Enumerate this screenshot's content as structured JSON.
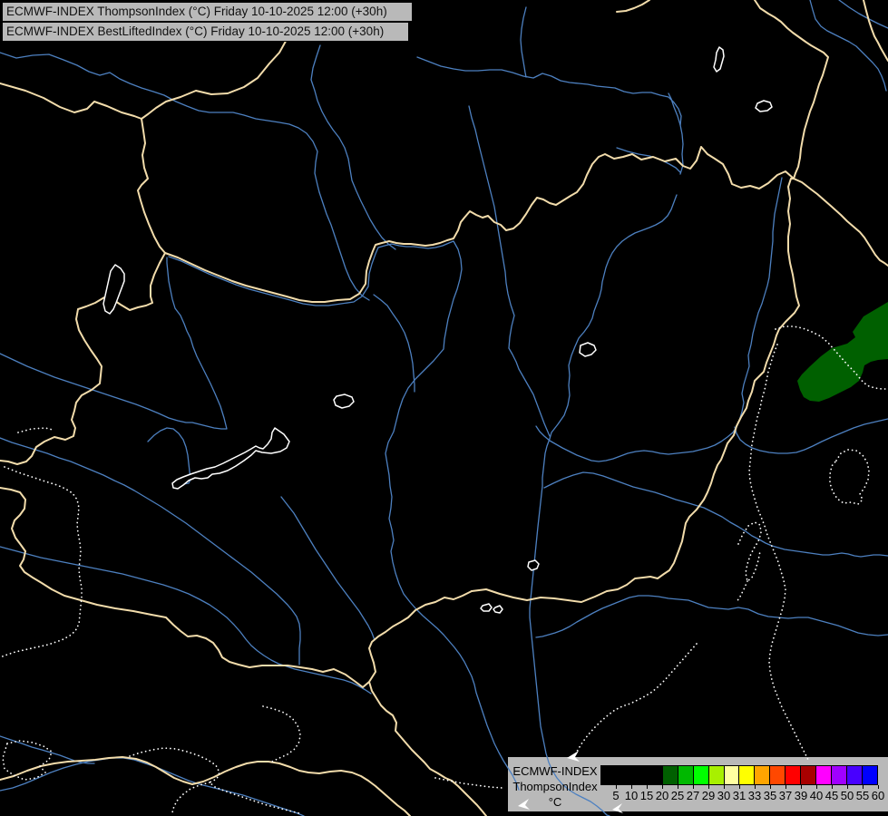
{
  "header": {
    "line1": "ECMWF-INDEX ThompsonIndex (°C) Friday 10-10-2025 12:00 (+30h)",
    "line2": "ECMWF-INDEX BestLiftedIndex (°C) Friday 10-10-2025 12:00 (+30h)"
  },
  "legend": {
    "title_line1": "ECMWF-INDEX",
    "title_line2": "ThompsonIndex",
    "unit": "°C",
    "ticks": [
      "5",
      "10",
      "15",
      "20",
      "25",
      "27",
      "29",
      "30",
      "31",
      "33",
      "35",
      "37",
      "39",
      "40",
      "45",
      "50",
      "55",
      "60"
    ],
    "cell_colors": [
      "#000000",
      "#000000",
      "#000000",
      "#000000",
      "#006000",
      "#00b800",
      "#00ff00",
      "#a8f000",
      "#ffffa0",
      "#ffff00",
      "#ffa500",
      "#ff4800",
      "#ff0000",
      "#a80000",
      "#ff00ff",
      "#a000ff",
      "#4800ff",
      "#0000ff"
    ]
  },
  "colors": {
    "background": "#000000",
    "panel_gray": "#b9b9b9",
    "border_tan": "#f2dcab",
    "river_blue": "#4d80c0",
    "dotted_white": "#ffffff",
    "area_green": "#006000",
    "text": "#111111"
  },
  "map": {
    "layers": [
      {
        "name": "data-area",
        "fill": "#006000",
        "paths": [
          "M979,333 L952,349 940,366 943,372 934,379 917,384 905,393 893,404 884,413 879,420 882,430 886,438 893,442 903,443 914,439 926,433 938,427 947,420 951,411 953,403 960,399 968,397 979,396 Z"
        ]
      },
      {
        "name": "legend-panel",
        "fill": "#b9b9b9",
        "paths": [
          "M560,835 L979,835 979,895 560,895 Z"
        ]
      },
      {
        "name": "river-path",
        "stroke": "#4d80c0",
        "width": 1.3,
        "paths": [
          "M0,58 L18,64 36,61 54,60 70,66 85,72 98,79 110,83 121,80 132,87 143,92 156,97 169,101 181,105 194,112 206,117 219,122 231,124 244,124 257,124 269,127 282,131 295,133 308,135 319,137 329,141 338,147 345,156 350,167 348,179 347,191 350,204 352,212",
          "M352,212 L356,224 360,236 365,248 369,260 373,272 377,284 381,296 386,308 392,318 399,326 407,331",
          "M353,50 L349,62 345,75 343,88 347,100 350,111 355,123 361,134 367,143 374,152 380,163 384,175 386,187 388,199 393,211 398,222 403,232 408,242 414,252 421,262 428,269 436,275",
          "M186,283 L200,288 215,295 230,302 245,308 260,314 275,319 290,323 305,327 320,331 334,335 348,337 362,337 376,335 390,333 399,327 406,316 407,302 410,291 414,280 417,273 424,271 432,269 440,271 448,272 456,272 464,273 472,274 480,273 488,271 495,268 500,266 505,275 508,286 509,297 507,308 504,319 500,330 497,341 494,352 492,363 490,374 489,385 478,398 468,408 458,418 450,428 444,440 440,452 437,464 434,476 428,488 425,500 427,512 429,524 430,536 432,548 431,560 429,572 432,584 434,596 431,608 433,620 436,632 440,644 445,655 452,664 459,672 466,679 474,686 482,693 489,700 495,707 501,714 507,722 512,730 516,738 520,746 523,755 525,764 528,773 531,782 534,791 537,800 541,810 545,820 550,830 555,839 560,847 565,855 569,863 572,871",
          "M412,325 L420,331 427,337 433,346 440,356 446,367 450,378 453,390 455,401 456,413 457,424 457,432",
          "M517,117 L520,130 524,143 527,156 530,168 533,180 536,192 539,204 542,216 545,228 547,240 549,252 551,264 553,276 555,288 557,300 558,312 560,324 563,336 567,348 564,360 562,372 561,384",
          "M561,384 L565,391 569,399 572,407 576,414 580,421 584,428 588,435 591,443 594,451 597,459 600,467 603,474 606,481",
          "M580,8 L577,20 575,32 574,44 575,56 577,68 579,80 580,85",
          "M746,215 L743,223 740,231 736,238 730,244 723,248 716,251 708,254 700,257 693,261 686,266 680,272 675,279 671,287 668,295 666,303 664,311 663,319 661,327 658,335 655,343 653,351 649,359 644,366 638,373 634,382 630,392 627,403 628,414 627,425 628,436 626,447 622,458 615,468 608,477 606,484 603,492 601,500 600,509 599,518 598,527 598,536 597,545 596,554 595,563 594,572 593,581 592,591 591,601 590,611 589,621 588,631 587,641 586,651 585,661 584,671 584,681 585,691 586,701 587,711 588,721 589,731 590,741 591,751 592,761 593,771 594,781 595,791 596,801 598,811 600,821 602,831 605,841 609,850 614,858 620,865 627,871 635,876 643,880 651,884 658,889 664,894 669,899 672,900",
          "M750,192 L753,182 752,170 753,159 752,148 750,138 747,128 743,118 740,109 737,103",
          "M460,63 L473,68 486,73 500,76 513,78 527,78 540,77 553,77 565,80 577,84 588,86 598,81 608,84 618,89 628,91 638,92 648,93 658,95 668,96 678,97 688,101 698,103 708,102 718,102 728,105 737,107 743,113 748,120 751,128 750,138",
          "M680,163 L692,167 704,170 716,172 728,176 738,181 745,185 750,190",
          "M893,0 L896,11 899,21 905,29 912,34 920,38 928,42 936,46 944,51 950,57 956,63 962,69 968,76 972,84 975,92 977,100",
          "M925,0 L936,8 947,15 958,21 968,26 979,31",
          "M862,196 L860,206 858,216 856,226 854,236 853,246 852,256 852,266 851,276 850,286 849,296 848,306 846,315 843,325 840,335 836,345 833,356 830,368 828,380 825,392 826,404 823,414 820,424 818,434 820,444 818,454 815,464 812,471 808,477 802,482 795,487 788,491 780,494 772,496 764,498 755,499 746,500 737,501 728,500 719,498 710,497 701,498 692,500 684,503 676,506 668,508 660,509 652,508 644,505 636,502 628,498 620,494 613,490 606,486 600,481 595,476 591,470",
          "M600,538 L610,533 621,528 632,524 643,521 654,522 665,525 676,529 687,533 698,537 710,540 722,543 734,547 745,551 756,554 766,557 776,560 786,565 796,570 805,576 814,581 822,586 829,591 837,595 844,599 851,602 858,604 865,606 872,607 879,608 886,609 893,610 900,611 907,612 914,612 921,611 928,610 935,611 942,613 949,614 956,613 963,612 970,612 979,613",
          "M979,462 L966,465 953,468 941,472 929,477 917,482 906,487 896,492 887,496 878,499 868,500 858,500 848,499 838,497 829,494 822,490 816,485 812,478 810,471",
          "M979,700 L968,701 957,700 946,698 935,694 924,690 913,687 902,684 891,681 880,681 869,682 858,681 847,680 836,677 825,672 814,670 803,672 792,671 781,670 770,666 759,662 748,661 737,660 726,658 715,657 704,657 694,659 684,663 674,667 664,671 654,676 645,681 636,686 628,691 620,695 612,698 605,700 598,702 591,703",
          "M0,390 L15,397 30,404 45,410 60,416 75,421 90,426 105,431 120,436 135,441 150,446 163,451 175,456 186,461 196,464 205,466 212,466 220,468 228,470 236,472 244,473 250,473 247,461 243,448 237,434 232,423 227,413 222,403 217,393 213,383 210,373 206,365 203,357 199,348 193,340 190,330 188,320 186,310 185,300 184,290 184,284",
          "M0,483 L13,488 26,492 39,496 52,500 65,505 78,509 90,514 102,519 114,524 126,530 137,535 148,541 158,547 168,553 178,559 187,565 196,571 205,577 213,583 221,589 229,595 237,601 245,607 253,613 261,619 269,625 277,631 284,637 291,643 298,649 305,655 311,661 317,667 322,673 327,680 330,688 331,697 331,706 330,715 330,724 330,733",
          "M163,487 L170,480 177,475 184,472 191,473 197,478 202,485 205,493 207,502 208,511 209,520 210,529 208,533 202,534 196,535 192,536",
          "M310,548 L317,557 324,566 330,576 336,586 342,596 348,606 354,615 360,624 366,633 372,642 378,650 384,658 390,666 396,674 401,682 406,690 410,698 413,706",
          "M0,603 L15,607 30,611 45,615 60,618 75,621 90,624 105,627 120,630 135,633 150,637 165,641 180,645 195,650 208,655 220,661 231,667 241,674 250,681 258,689 265,697 271,705 277,712 284,718 291,723 299,728 307,732 316,735 325,738 334,740 343,742 352,744 361,746 370,748 379,750 388,753 396,757 403,761 409,765",
          "M0,872 L14,869 28,864 42,858 56,852 70,847 84,843 97,840 110,838 123,836 136,836 148,838 160,842 172,846 184,851 196,856 208,861 220,865 232,868 244,871 256,874 268,877 280,881 292,885 304,889 316,893 328,897 335,900",
          "M0,812 L12,816 24,820 35,824 46,827 56,830 66,833 74,836 82,839 90,841 97,842 104,842"
        ]
      },
      {
        "name": "border-path",
        "stroke": "#f2dcab",
        "width": 2,
        "paths": [
          "M0,92 L28,100 48,108 66,118 82,124 96,120 104,112 118,117 134,124 148,128 156,131",
          "M318,40 L308,58 297,70 284,86 269,96 251,103 233,104 216,100 199,107 183,112 172,119 163,126 156,131",
          "M156,131 L158,144 160,158 157,171 159,185 163,197 156,204 152,210 155,221 159,234 164,247 170,261 176,272 182,279",
          "M182,279 L196,284 211,291 226,298 241,304 256,310 271,315 286,319 301,323 316,327 330,331 344,333 358,333 372,331 386,330 396,324 403,313 404,299 407,288 411,277 414,270 421,268 429,266 437,268 445,269 453,269 461,270 469,271 477,270 485,268 493,265 500,263 505,254 508,245 512,240 518,233 525,237 532,240 538,238 545,245 552,248 558,254 566,252 573,246 580,236 586,226 592,218 599,220 606,224 613,226 621,221 629,216 636,212 643,203 647,193 653,181 660,173 667,170 677,175 687,173 697,170 707,176 720,173 733,178 745,175 753,183 761,186 768,177 773,162 780,170 788,175 797,181 803,192 807,203 817,207 827,205 837,208 847,202 857,193 866,189 875,197",
          "M182,279 L176,290 170,303 166,315 166,327 168,334 161,337 152,339 143,342 133,336 124,330 115,328 105,334 95,338 86,341 84,352 87,364 93,375 100,386 107,396 112,404 111,414 110,423 101,430 90,436 84,444 82,453 79,463 83,472 81,481 72,485 60,482 49,487 40,493 35,503 29,509 19,512 9,509 0,508",
          "M0,538 L12,540 22,543 28,551 27,561 22,568 16,574 13,583 17,593 23,601 28,608 26,617 22,624 27,631 36,637 46,643 57,650 71,657 89,662 107,667 127,671 147,674 167,678 183,681 191,689 199,696 207,702 217,701 227,704 235,709 241,717 245,725 253,730 263,733 275,736 289,734 303,734 317,734 331,736 344,738 356,741 368,738 381,744 392,752 400,758 407,752",
          "M520,652 L510,657 500,661 490,659 480,664 469,667 458,673 450,681 442,686 433,691 425,697 417,702 410,708 407,715 409,722 412,731 414,741 407,752 410,762 415,770 420,778 426,784 433,789 437,797 436,806 442,813 448,820 454,827 461,834 468,841 474,848 483,853 491,858 498,861 505,867 512,874 519,881 526,888 532,895 536,900",
          "M520,652 L536,650 551,655 566,659 581,662 596,659 611,660 626,662 641,664 656,658 669,652 681,650 691,645 700,638 709,637 717,636 725,638 732,633 738,629 743,621 748,608 752,597 754,587 756,577 760,570 768,562 776,551 780,543 784,533 787,523 791,513 795,507 799,497 802,489 809,480 812,470 817,460 823,450 825,442 829,432 832,420 837,415 842,410 845,400 849,390 853,380 856,370 859,363 866,355 876,345 881,337 878,327 874,303 871,290 869,277 869,261 871,247 869,233 871,219 869,206 872,197 875,197",
          "M875,197 L884,201 893,208 901,214 909,221 917,228 927,237 934,244 941,250 948,256 953,262 960,273 965,281 970,287 975,290 979,293",
          "M832,0 L838,9 847,15 854,19 861,24 868,31 874,36 881,41 888,46 894,50 901,54 908,58 913,63 910,73 907,83 903,93 900,103 897,113 893,123 890,133 887,143 885,153 883,164 882,174 880,184 877,191 875,197",
          "M952,0 L955,12 958,23 961,32 964,40 968,47 971,53 975,60 979,67",
          "M716,0 L708,5 699,9 690,12 680,13",
          "M0,860 L15,856 30,850 45,845 60,842 75,840 90,839 105,838 120,836 135,835 150,837 162,841 172,846 182,852 192,858 202,862 212,865 224,862 236,857 248,851 260,846 272,842 284,840 296,840 308,842 320,846 330,850 340,852 352,853 364,851 376,850 388,852 398,856 406,861 414,867 422,874 430,881 438,888 446,894 452,900"
        ]
      },
      {
        "name": "dotted-border-path",
        "stroke": "#ffffff",
        "width": 1.7,
        "dash": "0.1 4.5",
        "paths": [
          "M20,477 L35,473 50,472 58,474",
          "M5,515 L20,521 35,526 50,531 63,535 72,539 80,544 85,551 87,560 86,570 85,578 86,588 88,598 89,608 88,618 87,628 88,638 90,648 90,658 89,668 88,678 87,688 83,696 77,701 70,705 62,708 53,711 44,713 35,715 26,717 17,719 8,722 0,725",
          "M8,820 L22,817 36,819 48,823 57,829 54,838 44,845 50,852 40,858 27,860 15,855 5,848 3,836 8,820",
          "M143,834 L155,830 168,827 181,825 194,826 206,829 218,833 229,838 238,844 242,852 239,859 231,863 237,868 247,872 258,876 270,880 282,884 294,888 306,891 318,894 330,897",
          "M231,863 L220,866 210,870 202,876 196,882 192,889 190,896",
          "M290,779 L302,782 313,786 322,792 328,800 331,809 330,818 325,826 317,832 308,836 300,840",
          "M480,858 L495,861 510,864 525,866 540,868 554,869",
          "M857,380 L853,390 850,400 847,410 845,420 843,430 840,440 838,450 835,460 833,470 831,480 829,490 828,500 827,510 826,520 827,530 829,540 832,550 835,560 839,570 843,580 846,590 850,600 854,610 858,620 861,630 864,640 866,650 865,660 863,670 860,680 857,690 854,700 851,710 849,720 848,730 849,740 851,750 854,760 858,770 862,780 867,790 872,800 877,810 882,820 887,830 891,838",
          "M855,363 L865,360 875,360 885,362 895,366 905,371 913,378 920,386 927,394 934,402 941,409 947,416 952,422 958,426 965,428 972,429 979,429",
          "M922,508 L927,500 935,496 944,497 951,502 956,510 958,519 957,529 953,538 948,545 951,551 946,556 938,554 930,555 923,550 918,542 915,533 915,523 917,514 922,508",
          "M814,600 L819,589 825,580 832,576 838,579 839,588 836,597 831,605 827,613 824,622 822,632 824,641 829,637 833,628 836,618 838,608",
          "M824,641 L820,650 816,658 812,664",
          "M768,710 L761,718 754,726 747,734 740,742 733,750 726,757 719,763 711,768 703,772 695,776 686,779 678,783 670,789 662,796 655,803 648,811 642,819 637,827 633,835"
        ]
      },
      {
        "name": "lake-outline",
        "stroke": "#ffffff",
        "width": 1.5,
        "fill": "#000000",
        "paths": [
          "M303,472 L313,479 319,487 316,494 309,498 299,500 289,499 282,497 277,502 269,508 260,514 251,519 242,522 234,523 229,527 222,528 215,527 208,530 202,535 196,539 191,538 190,533 195,529 202,526 210,523 219,520 228,517 237,515 246,511 254,507 262,503 270,499 277,495 282,492 286,494 290,495 295,490 299,484 300,477 303,472 Z",
          "M127,292 L133,296 137,302 137,310 134,318 131,326 128,334 125,341 121,346 116,343 114,335 116,326 118,317 120,308 122,299 127,292 Z",
          "M371,437 L380,435 388,438 390,443 385,448 377,450 370,447 368,441 371,437 Z",
          "M640,381 L648,378 655,381 657,386 652,391 645,393 639,389 640,381 Z",
          "M583,620 L590,618 594,622 592,627 586,629 582,625 583,620 Z",
          "M532,668 L539,666 542,670 539,674 533,674 530,671 532,668 Z",
          "M546,670 L551,668 554,672 551,676 546,675 544,672 546,670 Z",
          "M793,52 L797,55 798,62 796,69 794,76 790,79 787,74 789,66 790,58 793,52 Z",
          "M835,114 L842,111 849,113 851,118 846,122 838,123 833,119 835,114 Z"
        ]
      },
      {
        "name": "map-marker",
        "fill": "#ffffff",
        "paths": [
          "M625,836 L638,828 634,835 639,840 Z",
          "M571,889 L583,881 579,888 584,893 Z",
          "M675,893 L686,886 682,892 687,897 Z"
        ]
      }
    ]
  }
}
